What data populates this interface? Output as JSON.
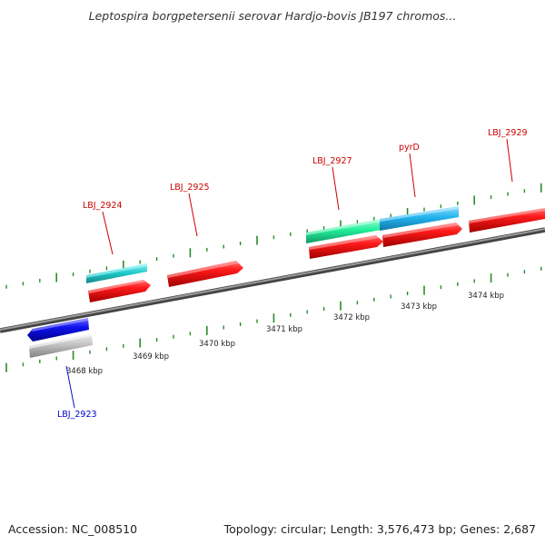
{
  "title": "Leptospira borgpetersenii serovar Hardjo-bovis JB197 chromos...",
  "footer": {
    "accession": "Accession: NC_008510",
    "summary": "Topology: circular; Length: 3,576,473 bp; Genes: 2,687"
  },
  "scale": [
    {
      "label": "3468 kbp",
      "kbp": 3468
    },
    {
      "label": "3469 kbp",
      "kbp": 3469
    },
    {
      "label": "3470 kbp",
      "kbp": 3470
    },
    {
      "label": "3471 kbp",
      "kbp": 3471
    },
    {
      "label": "3472 kbp",
      "kbp": 3472
    },
    {
      "label": "3473 kbp",
      "kbp": 3473
    },
    {
      "label": "3474 kbp",
      "kbp": 3474
    }
  ],
  "genes": [
    {
      "name": "LBJ_2923",
      "color": "#0000dd"
    },
    {
      "name": "LBJ_2924",
      "color": "#dd0000"
    },
    {
      "name": "LBJ_2925",
      "color": "#dd0000"
    },
    {
      "name": "LBJ_2927",
      "color": "#dd0000"
    },
    {
      "name": "pyrD",
      "color": "#dd0000"
    },
    {
      "name": "LBJ_2929",
      "color": "#dd0000"
    }
  ],
  "colors": {
    "forward_gene": "#ee1111",
    "reverse_gene": "#1111dd",
    "feature_cyan": "#22cccc",
    "feature_sky": "#22bbee",
    "feature_green": "#22ee99",
    "feature_gray": "#bbbbbb",
    "backbone": "#777777",
    "tick": "#2a8a2a"
  }
}
